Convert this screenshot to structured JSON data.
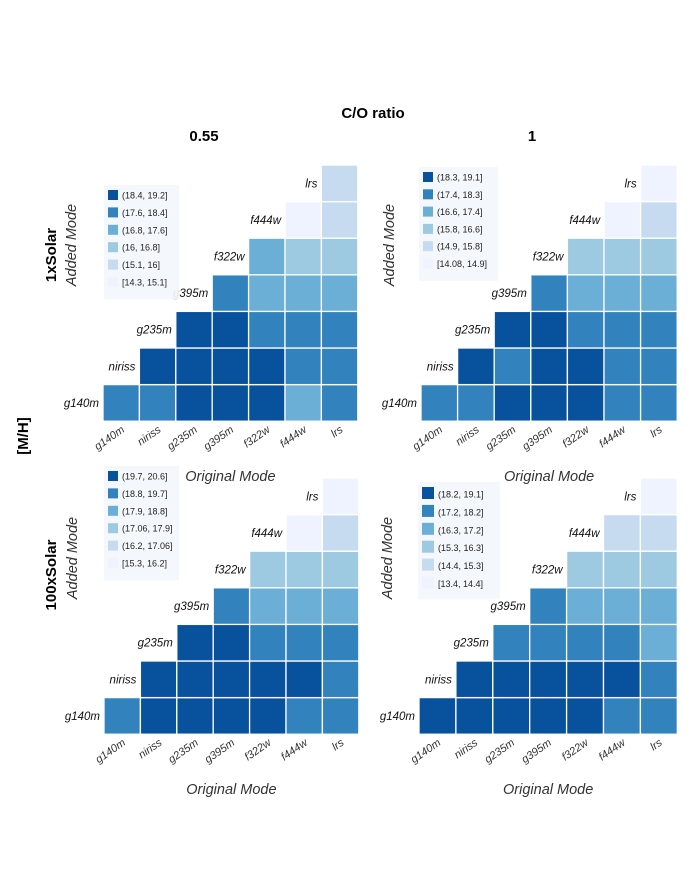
{
  "figure": {
    "super_title": "C/O ratio",
    "col_titles": [
      "0.55",
      "1"
    ],
    "row_titles": [
      "1xSolar",
      "100xSolar"
    ],
    "outer_ylabel": "[M/H]"
  },
  "chart_data": [
    {
      "type": "heatmap",
      "panel": "1xSolar / C/O=0.55",
      "xlabel": "Original Mode",
      "ylabel": "Added Mode",
      "modes": [
        "g140m",
        "niriss",
        "g235m",
        "g395m",
        "f322w",
        "f444w",
        "lrs"
      ],
      "legend": [
        "(18.4, 19.2]",
        "(17.6, 18.4]",
        "(16.8, 17.6]",
        "(16, 16.8]",
        "(15.1, 16]",
        "[14.3, 15.1]"
      ],
      "legend_colors": [
        "#08519c",
        "#3182bd",
        "#6baed6",
        "#9ecae1",
        "#c6dbef",
        "#eff3ff"
      ],
      "cells": [
        [
          1,
          1,
          0,
          0,
          0,
          2,
          1
        ],
        [
          null,
          0,
          0,
          0,
          0,
          1,
          1
        ],
        [
          null,
          null,
          0,
          0,
          1,
          1,
          1
        ],
        [
          null,
          null,
          null,
          1,
          2,
          2,
          2
        ],
        [
          null,
          null,
          null,
          null,
          2,
          3,
          3
        ],
        [
          null,
          null,
          null,
          null,
          null,
          5,
          4
        ],
        [
          null,
          null,
          null,
          null,
          null,
          null,
          4
        ]
      ]
    },
    {
      "type": "heatmap",
      "panel": "1xSolar / C/O=1",
      "xlabel": "Original Mode",
      "ylabel": "Added Mode",
      "modes": [
        "g140m",
        "niriss",
        "g235m",
        "g395m",
        "f322w",
        "f444w",
        "lrs"
      ],
      "legend": [
        "(18.3, 19.1]",
        "(17.4, 18.3]",
        "(16.6, 17.4]",
        "(15.8, 16.6]",
        "(14.9, 15.8]",
        "[14.08, 14.9]"
      ],
      "legend_colors": [
        "#08519c",
        "#3182bd",
        "#6baed6",
        "#9ecae1",
        "#c6dbef",
        "#eff3ff"
      ],
      "cells": [
        [
          1,
          1,
          0,
          0,
          0,
          1,
          1
        ],
        [
          null,
          0,
          1,
          0,
          0,
          1,
          1
        ],
        [
          null,
          null,
          0,
          0,
          1,
          1,
          1
        ],
        [
          null,
          null,
          null,
          1,
          2,
          2,
          2
        ],
        [
          null,
          null,
          null,
          null,
          3,
          3,
          3
        ],
        [
          null,
          null,
          null,
          null,
          null,
          5,
          4
        ],
        [
          null,
          null,
          null,
          null,
          null,
          null,
          5
        ]
      ]
    },
    {
      "type": "heatmap",
      "panel": "100xSolar / C/O=0.55",
      "xlabel": "Original Mode",
      "ylabel": "Added Mode",
      "modes": [
        "g140m",
        "niriss",
        "g235m",
        "g395m",
        "f322w",
        "f444w",
        "lrs"
      ],
      "legend": [
        "(19.7, 20.6]",
        "(18.8, 19.7]",
        "(17.9, 18.8]",
        "(17.06, 17.9]",
        "(16.2, 17.06]",
        "[15.3, 16.2]"
      ],
      "legend_colors": [
        "#08519c",
        "#3182bd",
        "#6baed6",
        "#9ecae1",
        "#c6dbef",
        "#eff3ff"
      ],
      "cells": [
        [
          1,
          0,
          0,
          0,
          0,
          1,
          1
        ],
        [
          null,
          0,
          0,
          0,
          0,
          0,
          1
        ],
        [
          null,
          null,
          0,
          0,
          1,
          1,
          1
        ],
        [
          null,
          null,
          null,
          1,
          2,
          2,
          2
        ],
        [
          null,
          null,
          null,
          null,
          3,
          3,
          3
        ],
        [
          null,
          null,
          null,
          null,
          null,
          5,
          4
        ],
        [
          null,
          null,
          null,
          null,
          null,
          null,
          5
        ]
      ]
    },
    {
      "type": "heatmap",
      "panel": "100xSolar / C/O=1",
      "xlabel": "Original Mode",
      "ylabel": "Added Mode",
      "modes": [
        "g140m",
        "niriss",
        "g235m",
        "g395m",
        "f322w",
        "f444w",
        "lrs"
      ],
      "legend": [
        "(18.2, 19.1]",
        "(17.2, 18.2]",
        "(16.3, 17.2]",
        "(15.3, 16.3]",
        "(14.4, 15.3]",
        "[13.4, 14.4]"
      ],
      "legend_colors": [
        "#08519c",
        "#3182bd",
        "#6baed6",
        "#9ecae1",
        "#c6dbef",
        "#eff3ff"
      ],
      "cells": [
        [
          0,
          0,
          0,
          0,
          0,
          1,
          1
        ],
        [
          null,
          0,
          0,
          0,
          0,
          0,
          1
        ],
        [
          null,
          null,
          1,
          1,
          1,
          1,
          2
        ],
        [
          null,
          null,
          null,
          1,
          2,
          2,
          2
        ],
        [
          null,
          null,
          null,
          null,
          3,
          3,
          3
        ],
        [
          null,
          null,
          null,
          null,
          null,
          4,
          4
        ],
        [
          null,
          null,
          null,
          null,
          null,
          null,
          5
        ]
      ]
    }
  ]
}
